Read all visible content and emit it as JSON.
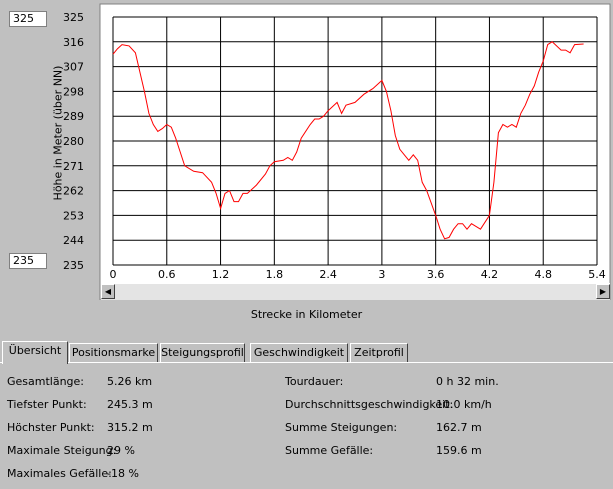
{
  "chart": {
    "range_max": "325",
    "range_min": "235",
    "ylabel": "Höhe in Meter (über NN)",
    "xlabel": "Strecke in Kilometer",
    "y_ticks": [
      "325",
      "316",
      "307",
      "298",
      "289",
      "280",
      "271",
      "262",
      "253",
      "244",
      "235"
    ],
    "x_ticks": [
      "0",
      "0.6",
      "1.2",
      "1.8",
      "2.4",
      "3",
      "3.6",
      "4.2",
      "4.8",
      "5.4"
    ]
  },
  "chart_data": {
    "type": "line",
    "xlabel": "Strecke in Kilometer",
    "ylabel": "Höhe in Meter (über NN)",
    "xlim": [
      0,
      5.4
    ],
    "ylim": [
      235,
      325
    ],
    "grid": true,
    "x": [
      0,
      0.05,
      0.1,
      0.18,
      0.25,
      0.3,
      0.35,
      0.4,
      0.45,
      0.5,
      0.55,
      0.6,
      0.65,
      0.7,
      0.75,
      0.8,
      0.9,
      1.0,
      1.1,
      1.15,
      1.2,
      1.25,
      1.3,
      1.35,
      1.4,
      1.45,
      1.5,
      1.6,
      1.7,
      1.75,
      1.8,
      1.9,
      1.95,
      2.0,
      2.05,
      2.1,
      2.2,
      2.25,
      2.3,
      2.35,
      2.4,
      2.5,
      2.55,
      2.6,
      2.7,
      2.8,
      2.9,
      3.0,
      3.05,
      3.1,
      3.15,
      3.2,
      3.25,
      3.3,
      3.35,
      3.4,
      3.45,
      3.5,
      3.6,
      3.65,
      3.7,
      3.75,
      3.8,
      3.85,
      3.9,
      3.95,
      4.0,
      4.05,
      4.1,
      4.2,
      4.25,
      4.3,
      4.35,
      4.4,
      4.45,
      4.5,
      4.55,
      4.6,
      4.65,
      4.7,
      4.75,
      4.8,
      4.85,
      4.9,
      5.0,
      5.05,
      5.1,
      5.15,
      5.25
    ],
    "series": [
      {
        "color": "#ff0000",
        "values": [
          311.5,
          313.5,
          315,
          314.5,
          312,
          305,
          298,
          290,
          286,
          283.5,
          284.5,
          286,
          285,
          281,
          276,
          271,
          269,
          268.5,
          265,
          261,
          255.5,
          261,
          262,
          258,
          258,
          261,
          261,
          264,
          268,
          271,
          272.5,
          273,
          274,
          273,
          276,
          281,
          286,
          288,
          288,
          289,
          291,
          294,
          290,
          293,
          294,
          297,
          299,
          302,
          298,
          291,
          282,
          277,
          275,
          273,
          275,
          273,
          265,
          262,
          253,
          248,
          244.5,
          245,
          248,
          250,
          250,
          248,
          250,
          249,
          248,
          253,
          265,
          283,
          286,
          285,
          286,
          285,
          290,
          293,
          297,
          300,
          305,
          309,
          315,
          316,
          313,
          313,
          312,
          315,
          315.2
        ]
      }
    ]
  },
  "tabs": [
    {
      "label": "Übersicht"
    },
    {
      "label": "Positionsmarke"
    },
    {
      "label": "Steigungsprofil"
    },
    {
      "label": "Geschwindigkeit"
    },
    {
      "label": "Zeitprofil"
    }
  ],
  "stats": {
    "gesamtlaenge_label": "Gesamtlänge:",
    "gesamtlaenge_value": "5.26 km",
    "tiefster_label": "Tiefster Punkt:",
    "tiefster_value": "245.3 m",
    "hoechster_label": "Höchster Punkt:",
    "hoechster_value": "315.2 m",
    "max_steigung_label": "Maximale Steigung:",
    "max_steigung_value": "29 %",
    "max_gefaelle_label": "Maximales Gefälle:",
    "max_gefaelle_value": "-18 %",
    "tourdauer_label": "Tourdauer:",
    "tourdauer_value": "0 h 32 min.",
    "durchschnitt_label": "Durchschnittsgeschwindigkeit:",
    "durchschnitt_value": "10.0 km/h",
    "summe_steigungen_label": "Summe Steigungen:",
    "summe_steigungen_value": "162.7 m",
    "summe_gefaelle_label": "Summe Gefälle:",
    "summe_gefaelle_value": "159.6 m"
  }
}
